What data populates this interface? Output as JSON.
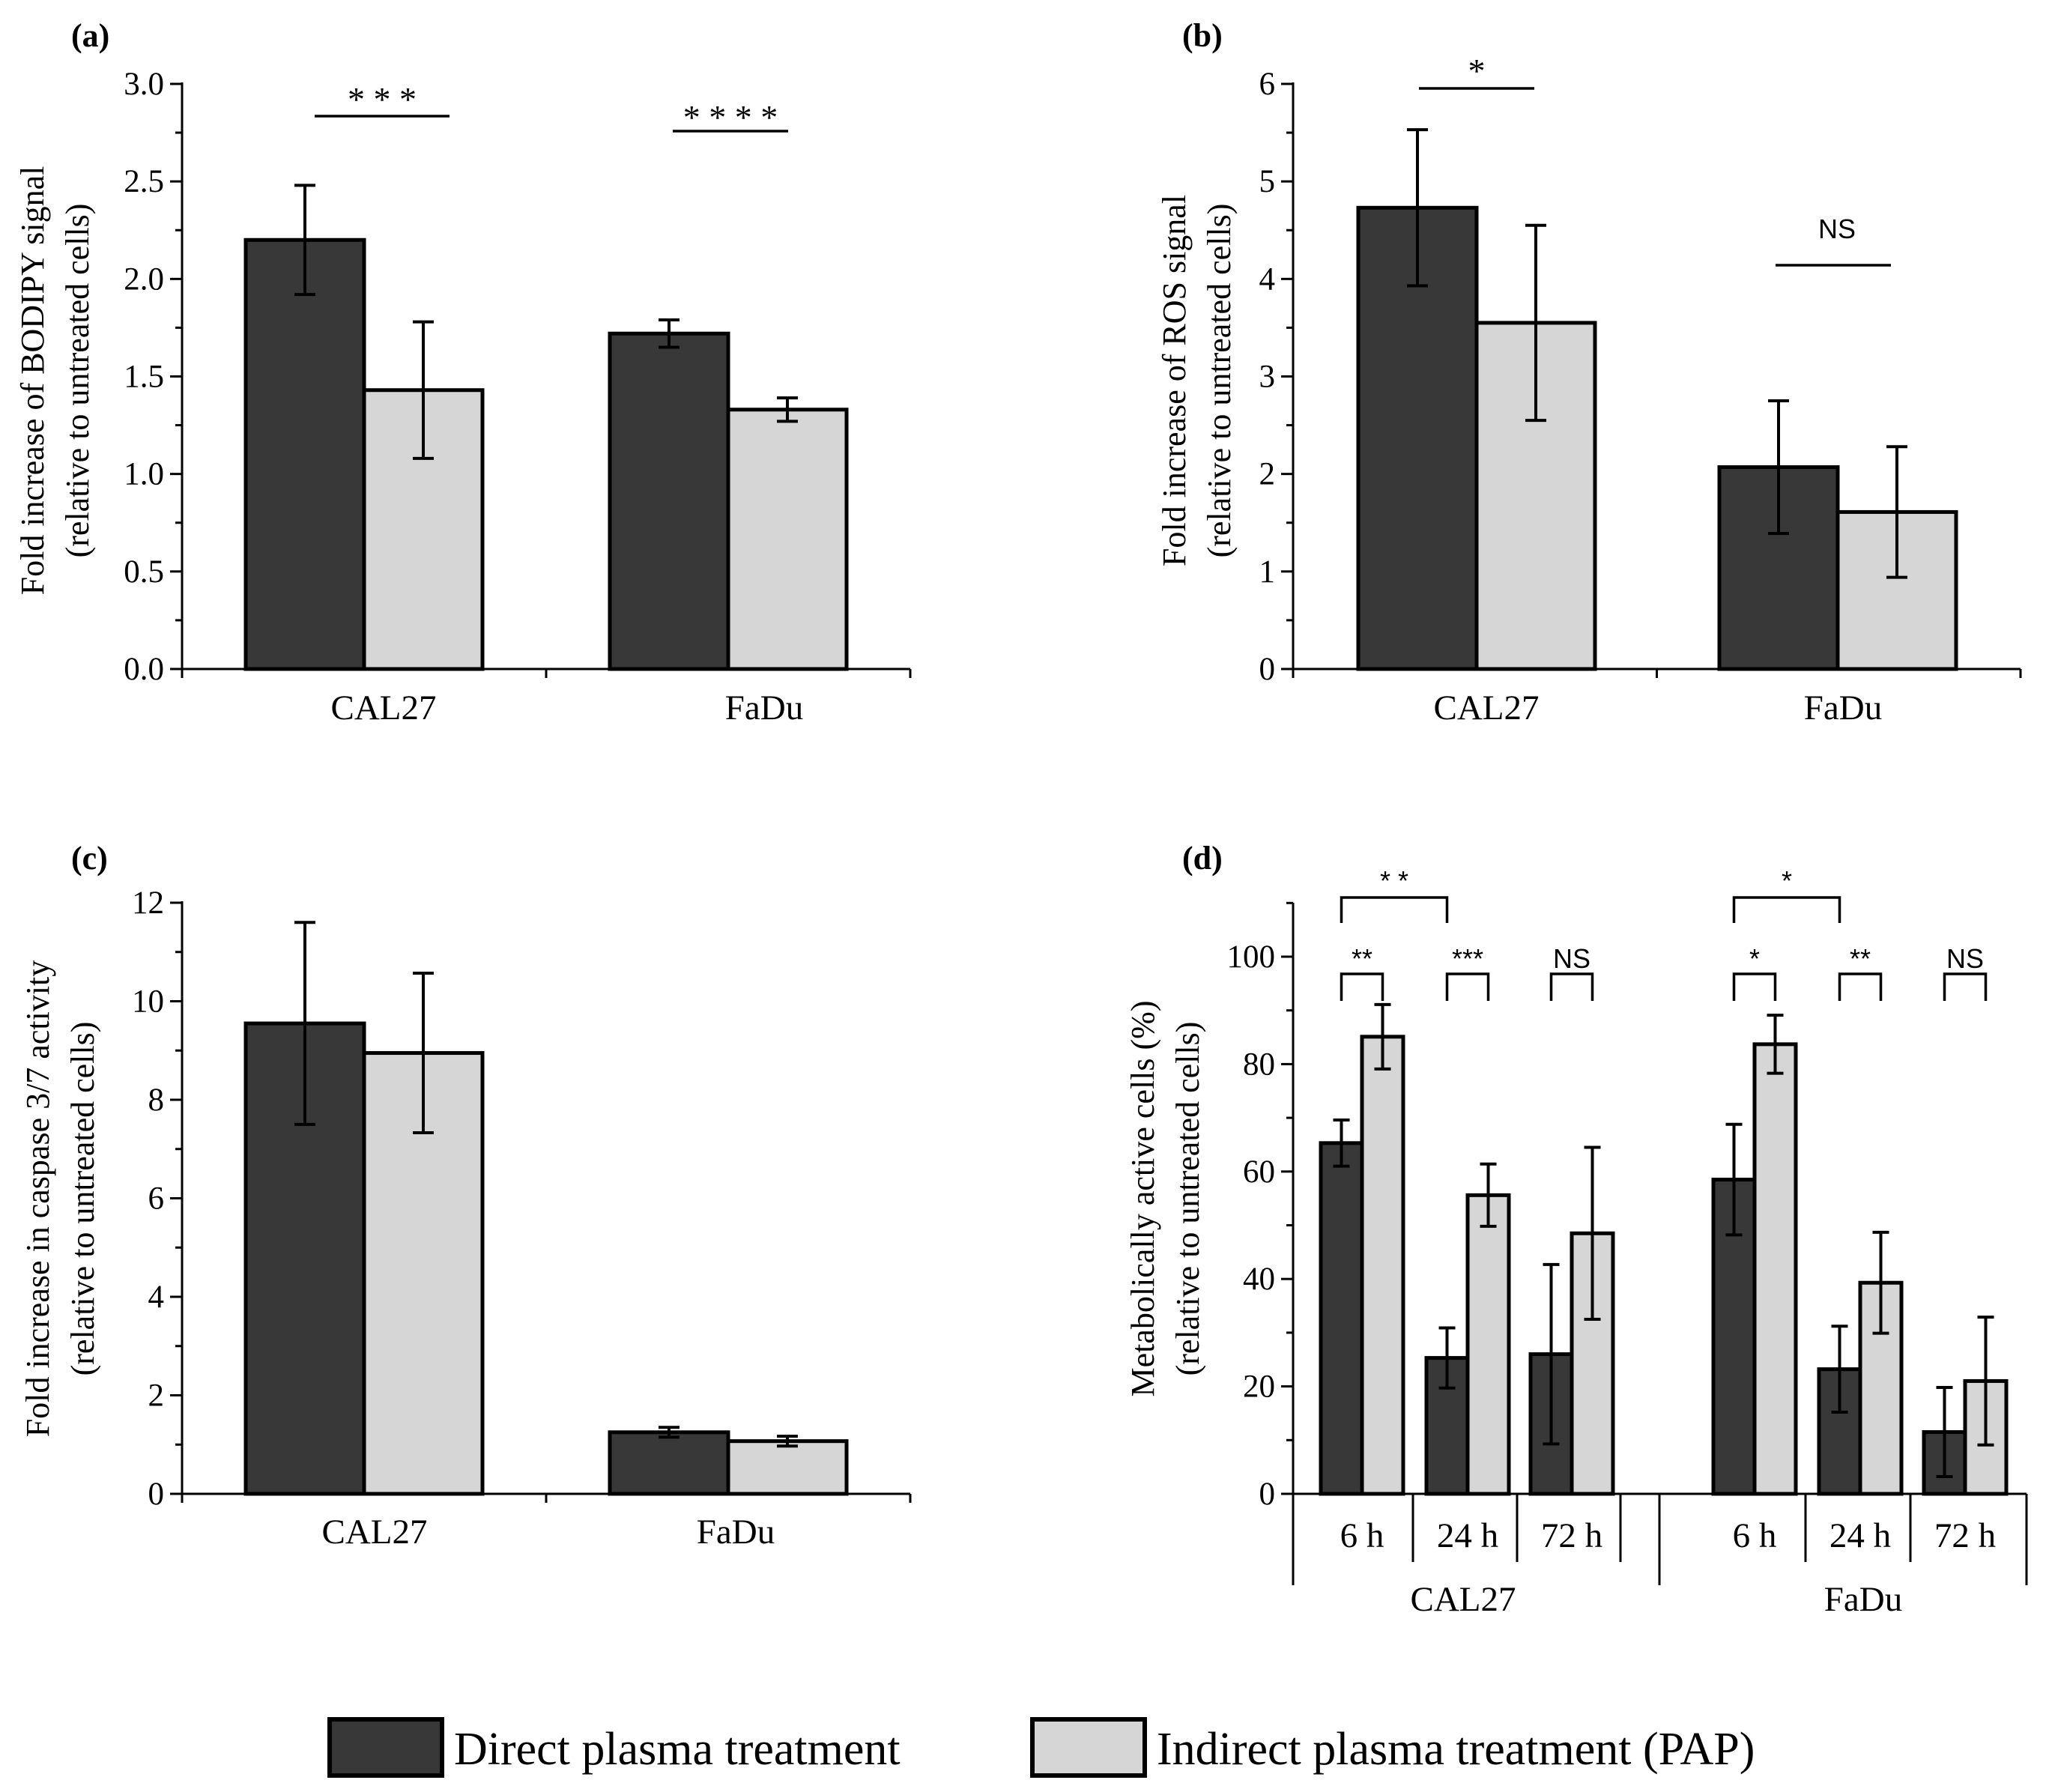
{
  "colors": {
    "direct": "#383838",
    "indirect": "#d6d6d6",
    "stroke": "#000000"
  },
  "legend": {
    "direct": "Direct plasma treatment",
    "indirect": "Indirect plasma treatment (PAP)"
  },
  "chart_data": [
    {
      "panel": "(a)",
      "type": "bar",
      "ylabel_line1": "Fold increase of BODIPY signal",
      "ylabel_line2": "(relative to untreated cells)",
      "ylim": [
        0,
        3.0
      ],
      "ticks": [
        "0.0",
        "0.5",
        "1.0",
        "1.5",
        "2.0",
        "2.5",
        "3.0"
      ],
      "categories": [
        "CAL27",
        "FaDu"
      ],
      "series": [
        {
          "name": "Direct plasma treatment",
          "values": [
            2.2,
            1.72
          ],
          "errors": [
            0.28,
            0.07
          ]
        },
        {
          "name": "Indirect plasma treatment (PAP)",
          "values": [
            1.43,
            1.33
          ],
          "errors": [
            0.35,
            0.06
          ]
        }
      ],
      "significance": [
        "* * *",
        "* * * *"
      ]
    },
    {
      "panel": "(b)",
      "type": "bar",
      "ylabel_line1": "Fold increase of ROS signal",
      "ylabel_line2": "(relative to untreated cells)",
      "ylim": [
        0,
        6
      ],
      "ticks": [
        "0",
        "1",
        "2",
        "3",
        "4",
        "5",
        "6"
      ],
      "categories": [
        "CAL27",
        "FaDu"
      ],
      "series": [
        {
          "name": "Direct plasma treatment",
          "values": [
            4.73,
            2.07
          ],
          "errors": [
            0.8,
            0.68
          ]
        },
        {
          "name": "Indirect plasma treatment (PAP)",
          "values": [
            3.55,
            1.61
          ],
          "errors": [
            1.0,
            0.67
          ]
        }
      ],
      "significance": [
        "*",
        "NS"
      ]
    },
    {
      "panel": "(c)",
      "type": "bar",
      "ylabel_line1": "Fold increase in caspase 3/7 activity",
      "ylabel_line2": "(relative to untreated cells)",
      "ylim": [
        0,
        12
      ],
      "ticks": [
        "0",
        "2",
        "4",
        "6",
        "8",
        "10",
        "12"
      ],
      "categories": [
        "CAL27",
        "FaDu"
      ],
      "series": [
        {
          "name": "Direct plasma treatment",
          "values": [
            9.55,
            1.25
          ],
          "errors": [
            2.05,
            0.1
          ]
        },
        {
          "name": "Indirect plasma treatment (PAP)",
          "values": [
            8.95,
            1.07
          ],
          "errors": [
            1.62,
            0.1
          ]
        }
      ],
      "significance": []
    },
    {
      "panel": "(d)",
      "type": "bar",
      "ylabel_line1": "Metabolically active cells (%)",
      "ylabel_line2": "(relative to untreated cells)",
      "ylim": [
        0,
        110
      ],
      "ticks": [
        "0",
        "20",
        "40",
        "60",
        "80",
        "100"
      ],
      "groups": [
        "CAL27",
        "FaDu"
      ],
      "categories": [
        "6 h",
        "24 h",
        "72 h",
        "6 h",
        "24 h",
        "72 h"
      ],
      "series": [
        {
          "name": "Direct plasma treatment",
          "values": [
            65.3,
            25.3,
            26.0,
            58.5,
            23.2,
            11.5
          ],
          "errors": [
            4.3,
            5.6,
            16.7,
            10.3,
            8.0,
            8.3
          ]
        },
        {
          "name": "Indirect plasma treatment (PAP)",
          "values": [
            85.1,
            55.6,
            48.5,
            83.7,
            39.3,
            21.0
          ],
          "errors": [
            6.0,
            5.8,
            16.0,
            5.4,
            9.4,
            11.9
          ]
        }
      ],
      "significance_pairs": [
        "**",
        "***",
        "NS",
        "*",
        "**",
        "NS"
      ],
      "significance_time": [
        "* *",
        "*"
      ]
    }
  ]
}
